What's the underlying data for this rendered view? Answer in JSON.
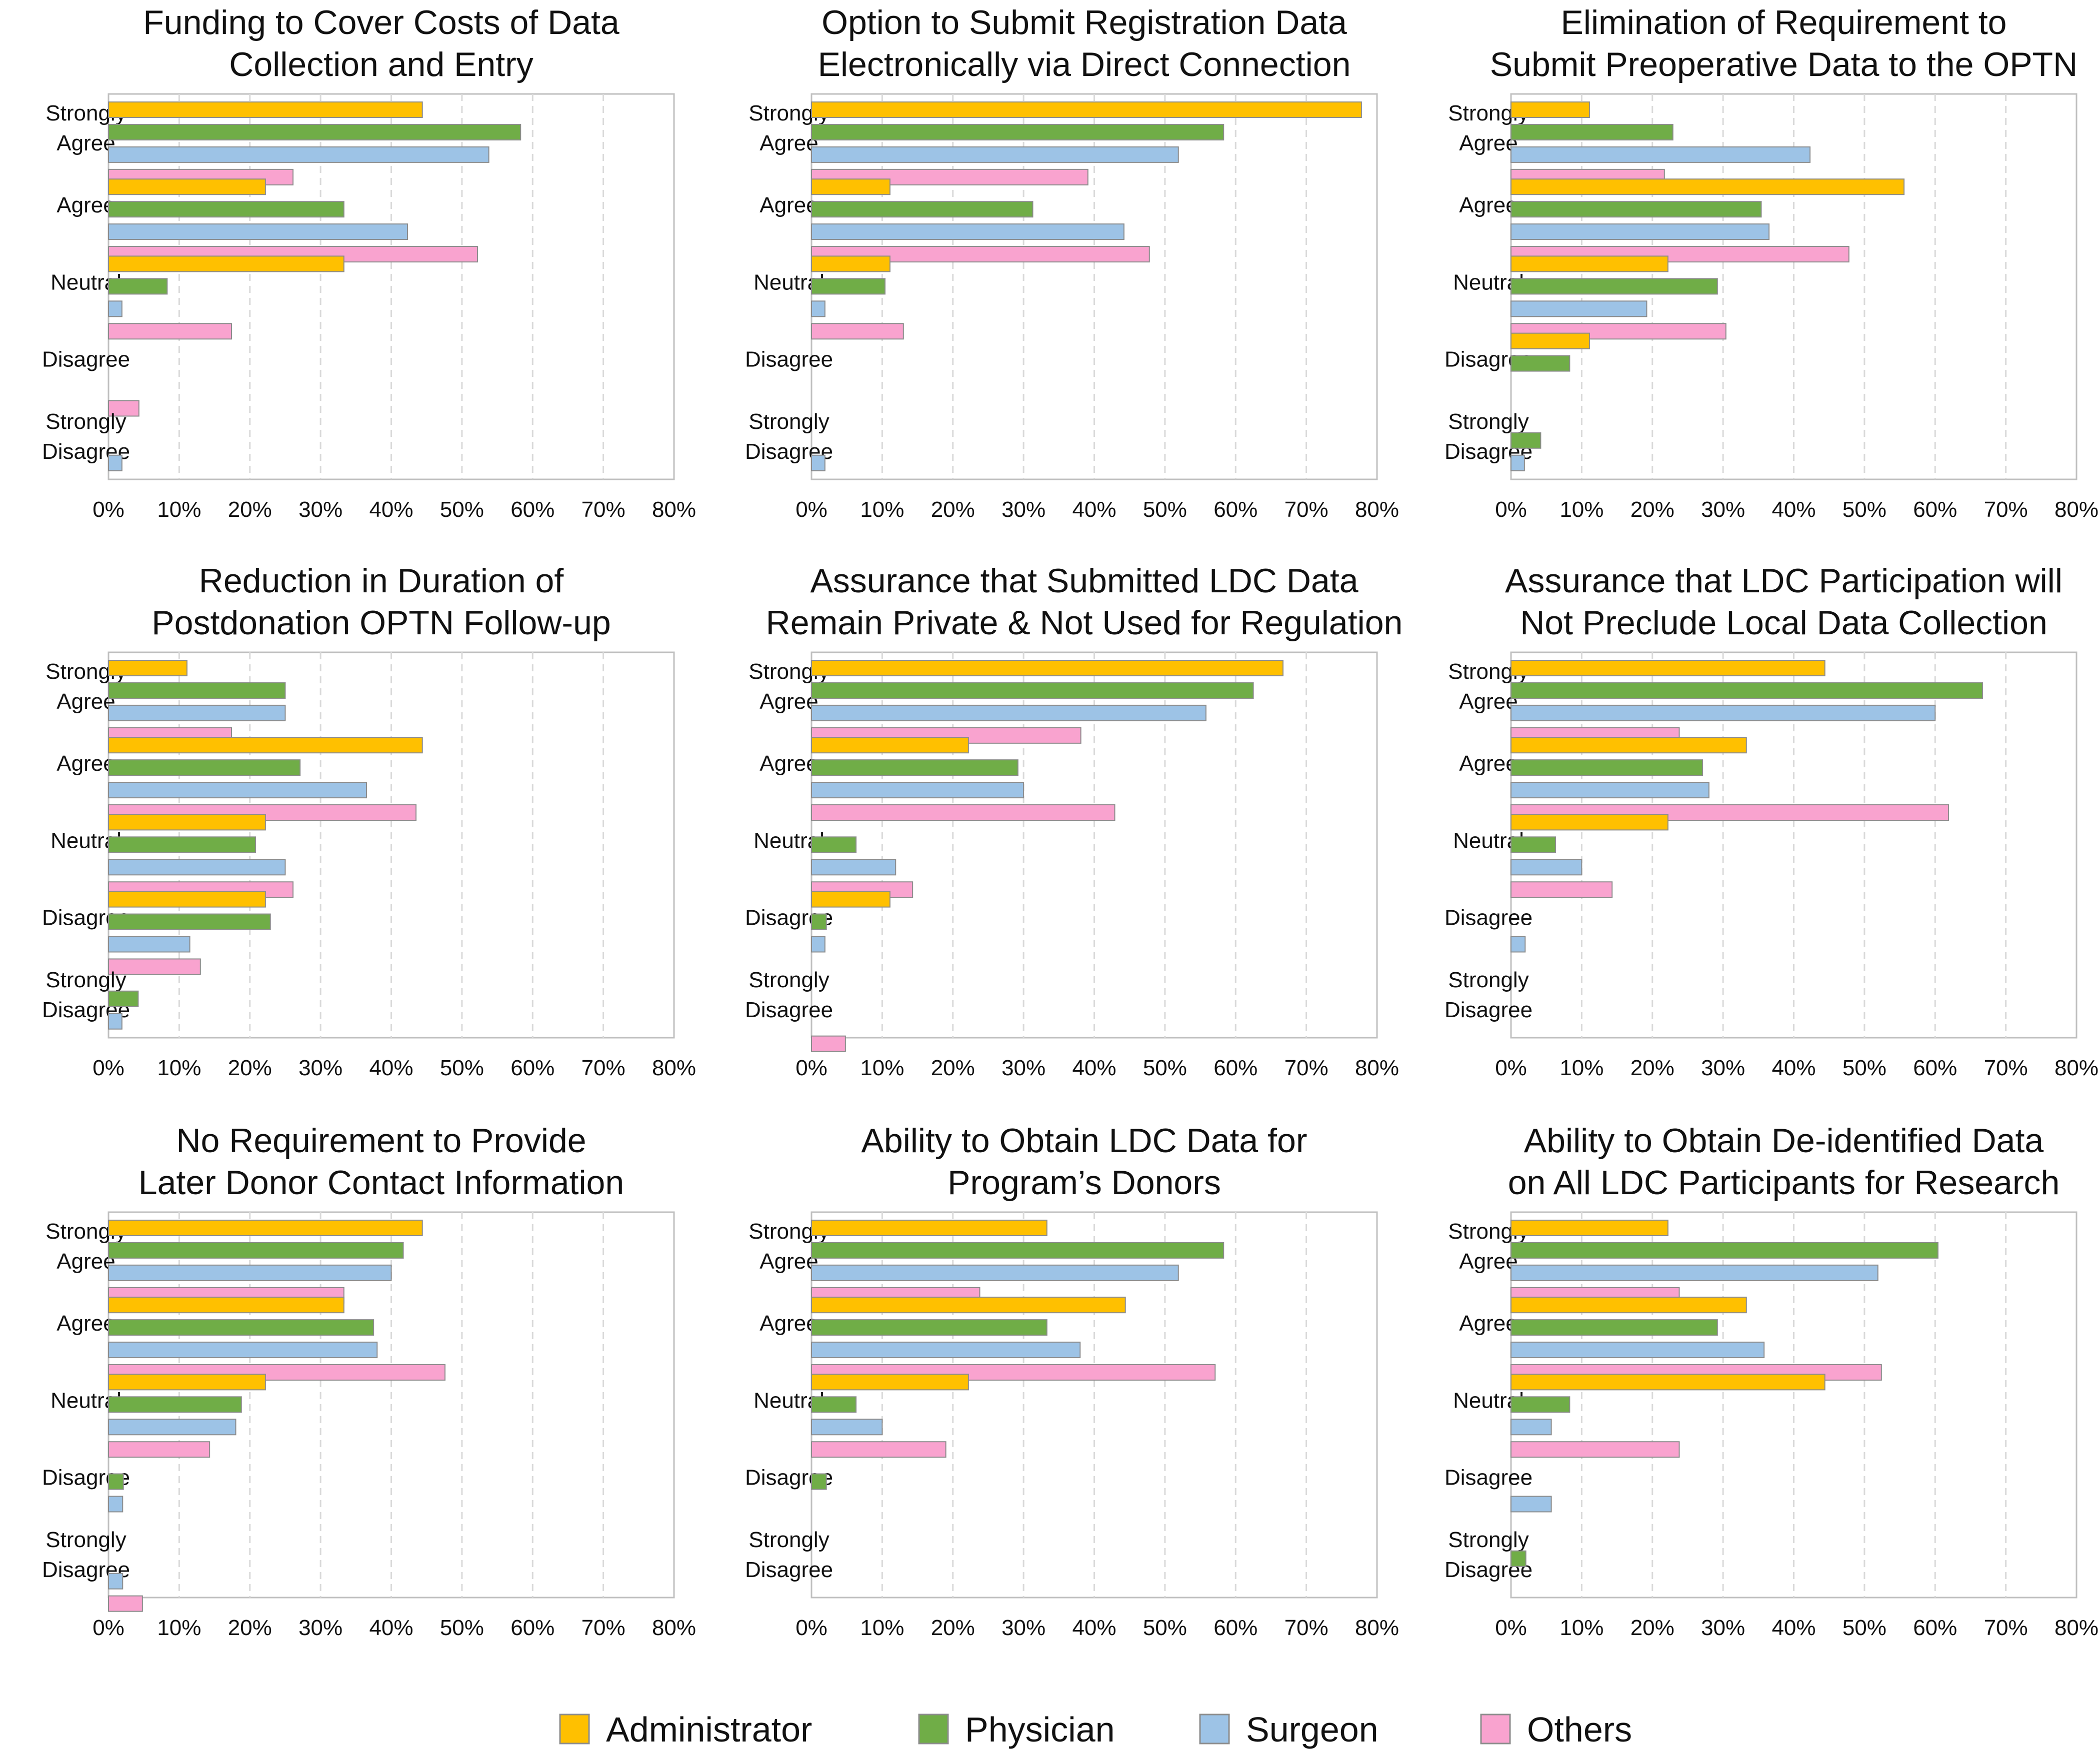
{
  "chart_data": {
    "type": "bar",
    "orientation": "horizontal",
    "categories": [
      [
        "Strongly",
        "Agree"
      ],
      [
        "Agree"
      ],
      [
        "Neutral"
      ],
      [
        "Disagree"
      ],
      [
        "Strongly",
        "Disagree"
      ]
    ],
    "x_ticks": [
      "0%",
      "10%",
      "20%",
      "30%",
      "40%",
      "50%",
      "60%",
      "70%",
      "80%"
    ],
    "xlim": [
      0,
      80
    ],
    "unit": "%",
    "grid": "vertical dashed",
    "legend": {
      "placement": "bottom",
      "entries": [
        {
          "name": "Administrator",
          "color": "#FFC000"
        },
        {
          "name": "Physician",
          "color": "#70AD47"
        },
        {
          "name": "Surgeon",
          "color": "#9DC3E6"
        },
        {
          "name": "Others",
          "color": "#F9A3CF"
        }
      ]
    },
    "panels": [
      {
        "title": [
          "Funding to Cover Costs of Data",
          "Collection and Entry"
        ],
        "series": [
          [
            44.4,
            22.2,
            33.3,
            0,
            0
          ],
          [
            58.3,
            33.3,
            8.3,
            0,
            0
          ],
          [
            53.8,
            42.3,
            1.9,
            0,
            1.9
          ],
          [
            26.1,
            52.2,
            17.4,
            4.3,
            0
          ]
        ]
      },
      {
        "title": [
          "Option to Submit Registration Data",
          "Electronically via Direct Connection"
        ],
        "series": [
          [
            77.8,
            11.1,
            11.1,
            0,
            0
          ],
          [
            58.3,
            31.3,
            10.4,
            0,
            0
          ],
          [
            51.9,
            44.2,
            1.9,
            0,
            1.9
          ],
          [
            39.1,
            47.8,
            13.0,
            0,
            0
          ]
        ]
      },
      {
        "title": [
          "Elimination of Requirement to",
          "Submit Preoperative Data to the OPTN"
        ],
        "series": [
          [
            11.1,
            55.6,
            22.2,
            11.1,
            0
          ],
          [
            22.9,
            35.4,
            29.2,
            8.3,
            4.2
          ],
          [
            42.3,
            36.5,
            19.2,
            0,
            1.9
          ],
          [
            21.7,
            47.8,
            30.4,
            0,
            0
          ]
        ]
      },
      {
        "title": [
          "Reduction in Duration of",
          "Postdonation OPTN Follow-up"
        ],
        "series": [
          [
            11.1,
            44.4,
            22.2,
            22.2,
            0
          ],
          [
            25.0,
            27.1,
            20.8,
            22.9,
            4.2
          ],
          [
            25.0,
            36.5,
            25.0,
            11.5,
            1.9
          ],
          [
            17.4,
            43.5,
            26.1,
            13.0,
            0
          ]
        ]
      },
      {
        "title": [
          "Assurance that Submitted LDC Data",
          "Remain Private & Not Used for Regulation"
        ],
        "series": [
          [
            66.7,
            22.2,
            0,
            11.1,
            0
          ],
          [
            62.5,
            29.2,
            6.3,
            2.1,
            0
          ],
          [
            55.8,
            30.0,
            11.9,
            1.9,
            0
          ],
          [
            38.1,
            42.9,
            14.3,
            0,
            4.8
          ]
        ]
      },
      {
        "title": [
          "Assurance that LDC Participation will",
          "Not Preclude Local Data Collection"
        ],
        "series": [
          [
            44.4,
            33.3,
            22.2,
            0,
            0
          ],
          [
            66.7,
            27.1,
            6.3,
            0,
            0
          ],
          [
            60.0,
            28.0,
            10.0,
            2.0,
            0
          ],
          [
            23.8,
            61.9,
            14.3,
            0,
            0
          ]
        ]
      },
      {
        "title": [
          "No Requirement to Provide",
          "Later Donor Contact Information"
        ],
        "series": [
          [
            44.4,
            33.3,
            22.2,
            0,
            0
          ],
          [
            41.7,
            37.5,
            18.8,
            2.1,
            0
          ],
          [
            40.0,
            38.0,
            18.0,
            2.0,
            2.0
          ],
          [
            33.3,
            47.6,
            14.3,
            0,
            4.8
          ]
        ]
      },
      {
        "title": [
          "Ability to Obtain LDC Data for",
          "Program’s Donors"
        ],
        "series": [
          [
            33.3,
            44.4,
            22.2,
            0,
            0
          ],
          [
            58.3,
            33.3,
            6.3,
            2.1,
            0
          ],
          [
            51.9,
            38.0,
            10.0,
            0,
            0
          ],
          [
            23.8,
            57.1,
            19.0,
            0,
            0
          ]
        ]
      },
      {
        "title": [
          "Ability to Obtain De-identified Data",
          "on All LDC Participants for Research"
        ],
        "series": [
          [
            22.2,
            33.3,
            44.4,
            0,
            0
          ],
          [
            60.4,
            29.2,
            8.3,
            0,
            2.1
          ],
          [
            51.9,
            35.8,
            5.7,
            5.7,
            0
          ],
          [
            23.8,
            52.4,
            23.8,
            0,
            0
          ]
        ]
      }
    ]
  }
}
